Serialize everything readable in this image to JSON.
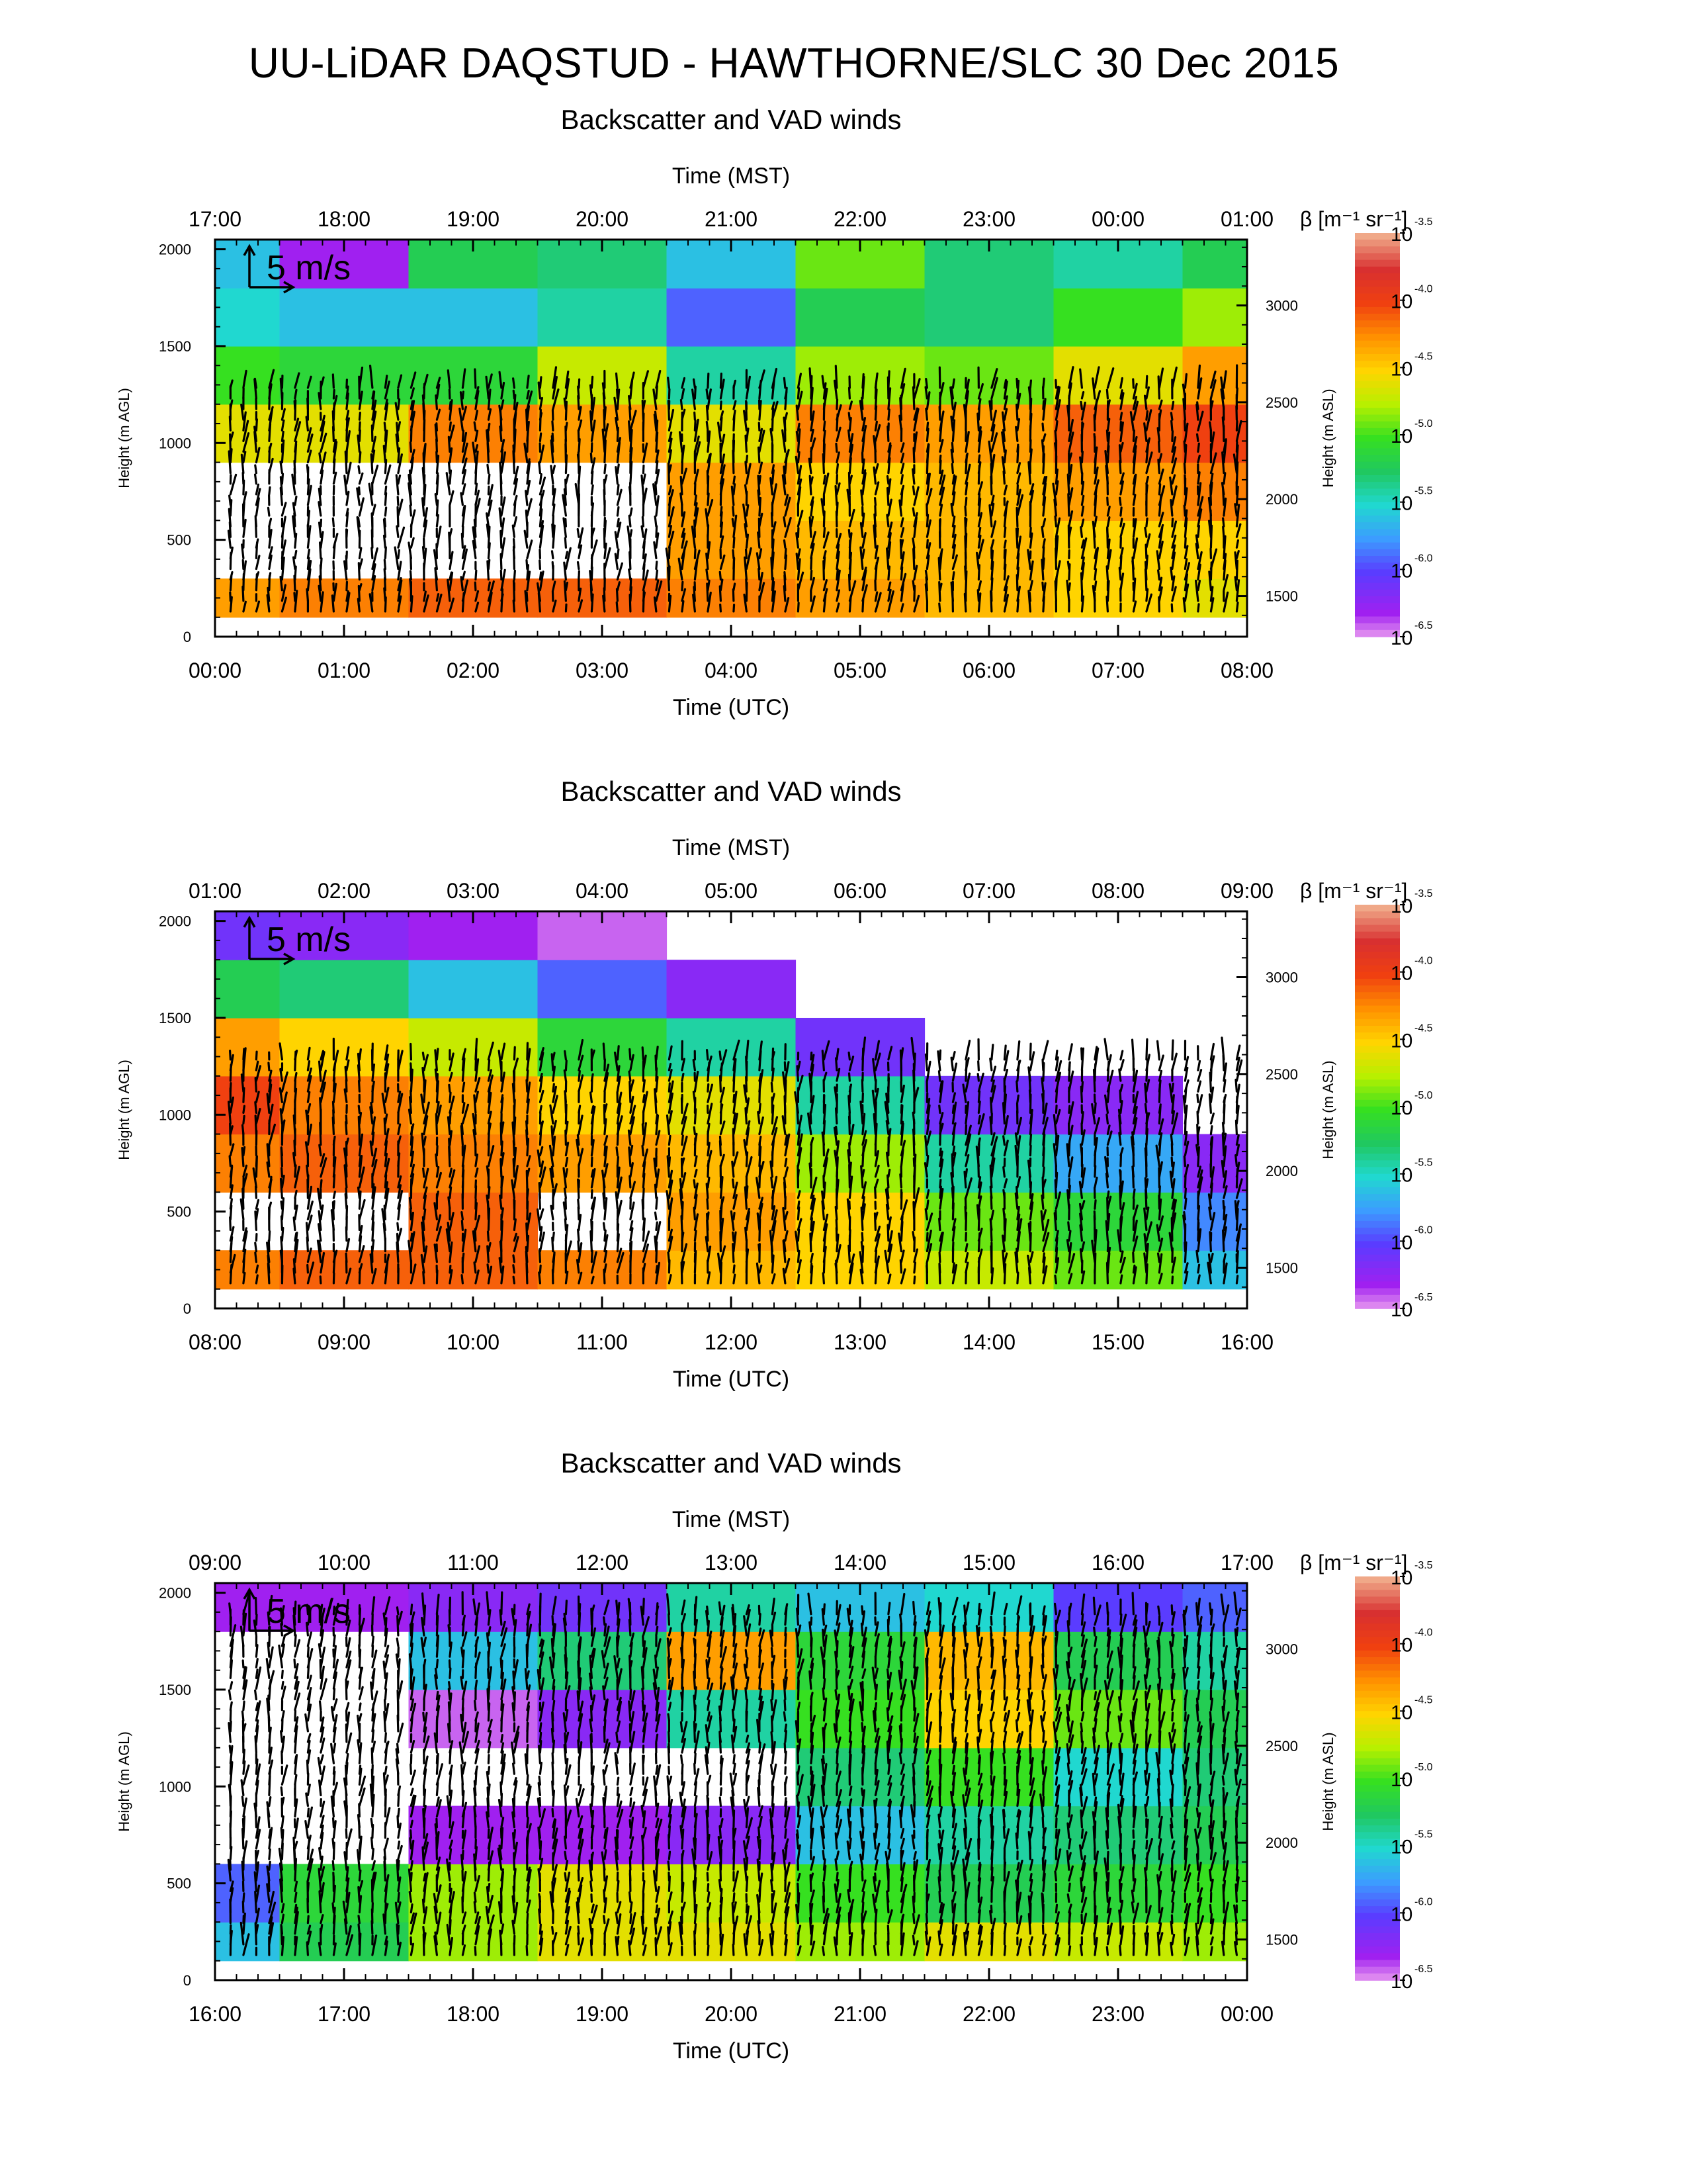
{
  "title": "UU-LiDAR DAQSTUD - HAWTHORNE/SLC 30 Dec 2015",
  "chart_data": [
    {
      "type": "heatmap",
      "title": "Backscatter and VAD winds",
      "xlabel_top": "Time (MST)",
      "xlabel_bottom": "Time (UTC)",
      "ylabel_left": "Height (m AGL)",
      "ylabel_right": "Height (m ASL)",
      "colorbar_label": "β [m⁻¹ sr⁻¹]",
      "colorbar_ticks": [
        "10^-3.5",
        "10^-4.0",
        "10^-4.5",
        "10^-5.0",
        "10^-5.5",
        "10^-6.0",
        "10^-6.5"
      ],
      "x_ticks_top": [
        "17:00",
        "18:00",
        "19:00",
        "20:00",
        "21:00",
        "22:00",
        "23:00",
        "00:00",
        "01:00"
      ],
      "x_ticks_bottom": [
        "00:00",
        "01:00",
        "02:00",
        "03:00",
        "04:00",
        "05:00",
        "06:00",
        "07:00",
        "08:00"
      ],
      "y_ticks_left": [
        "0",
        "500",
        "1000",
        "1500",
        "2000"
      ],
      "y_ticks_right": [
        "1500",
        "2000",
        "2500",
        "3000"
      ],
      "ylim": [
        0,
        2050
      ],
      "xlim_hours_utc": [
        0,
        8
      ],
      "wind_scale": "5 m/s",
      "backscatter_log10": {
        "heights_m": [
          150,
          450,
          750,
          1050,
          1350,
          1650,
          1950
        ],
        "times_utc_h": [
          0,
          1,
          2,
          3,
          4,
          5,
          6,
          7,
          8
        ],
        "values": [
          [
            -4.3,
            -4.2,
            -4.1,
            -4.1,
            -4.2,
            -4.3,
            -4.4,
            -4.5,
            -4.6
          ],
          [
            null,
            null,
            null,
            null,
            -4.3,
            -4.4,
            -4.4,
            -4.5,
            -4.5
          ],
          [
            null,
            null,
            null,
            null,
            -4.3,
            -4.5,
            -4.4,
            -4.3,
            -4.2
          ],
          [
            -4.6,
            -4.6,
            -4.2,
            -4.3,
            -4.6,
            -4.2,
            -4.3,
            -4.1,
            -4.0
          ],
          [
            -5.0,
            -5.1,
            -5.1,
            -4.7,
            -5.4,
            -4.8,
            -4.9,
            -4.6,
            -4.3
          ],
          [
            -5.5,
            -5.6,
            -5.6,
            -5.4,
            -5.9,
            -5.2,
            -5.3,
            -5.0,
            -4.8
          ],
          [
            -5.6,
            -6.3,
            -5.2,
            -5.3,
            -5.6,
            -4.9,
            -5.3,
            -5.4,
            -5.2
          ]
        ]
      },
      "wind_profile_hint": "southerly winds 3-8 m/s below 1300 m"
    },
    {
      "type": "heatmap",
      "title": "Backscatter and VAD winds",
      "xlabel_top": "Time (MST)",
      "xlabel_bottom": "Time (UTC)",
      "ylabel_left": "Height (m AGL)",
      "ylabel_right": "Height (m ASL)",
      "colorbar_label": "β [m⁻¹ sr⁻¹]",
      "colorbar_ticks": [
        "10^-3.5",
        "10^-4.0",
        "10^-4.5",
        "10^-5.0",
        "10^-5.5",
        "10^-6.0",
        "10^-6.5"
      ],
      "x_ticks_top": [
        "01:00",
        "02:00",
        "03:00",
        "04:00",
        "05:00",
        "06:00",
        "07:00",
        "08:00",
        "09:00"
      ],
      "x_ticks_bottom": [
        "08:00",
        "09:00",
        "10:00",
        "11:00",
        "12:00",
        "13:00",
        "14:00",
        "15:00",
        "16:00"
      ],
      "y_ticks_left": [
        "0",
        "500",
        "1000",
        "1500",
        "2000"
      ],
      "y_ticks_right": [
        "1500",
        "2000",
        "2500",
        "3000"
      ],
      "ylim": [
        0,
        2050
      ],
      "xlim_hours_utc": [
        8,
        16
      ],
      "wind_scale": "5 m/s",
      "backscatter_log10": {
        "heights_m": [
          150,
          450,
          750,
          1050,
          1350,
          1650,
          1950
        ],
        "times_utc_h": [
          8,
          9,
          10,
          11,
          12,
          13,
          14,
          15,
          16
        ],
        "values": [
          [
            -4.2,
            -4.1,
            -4.1,
            -4.2,
            -4.4,
            -4.5,
            -4.7,
            -4.9,
            -5.6
          ],
          [
            null,
            null,
            -4.1,
            null,
            -4.3,
            -4.5,
            -4.9,
            -5.1,
            -5.8
          ],
          [
            -4.2,
            -4.1,
            -4.2,
            -4.3,
            -4.4,
            -4.8,
            -5.4,
            -5.7,
            -6.2
          ],
          [
            -4.0,
            -4.2,
            -4.3,
            -4.5,
            -4.6,
            -5.4,
            -6.1,
            -6.2,
            null
          ],
          [
            -4.3,
            -4.5,
            -4.7,
            -5.1,
            -5.4,
            -6.1,
            null,
            null,
            null
          ],
          [
            -5.2,
            -5.3,
            -5.6,
            -5.9,
            -6.2,
            null,
            null,
            null,
            null
          ],
          [
            -6.1,
            -6.2,
            -6.3,
            -6.4,
            null,
            null,
            null,
            null,
            null
          ]
        ]
      },
      "wind_profile_hint": "southerly winds 4-10 m/s below 1300 m"
    },
    {
      "type": "heatmap",
      "title": "Backscatter and VAD winds",
      "xlabel_top": "Time (MST)",
      "xlabel_bottom": "Time (UTC)",
      "ylabel_left": "Height (m AGL)",
      "ylabel_right": "Height (m ASL)",
      "colorbar_label": "β [m⁻¹ sr⁻¹]",
      "colorbar_ticks": [
        "10^-3.5",
        "10^-4.0",
        "10^-4.5",
        "10^-5.0",
        "10^-5.5",
        "10^-6.0",
        "10^-6.5"
      ],
      "x_ticks_top": [
        "09:00",
        "10:00",
        "11:00",
        "12:00",
        "13:00",
        "14:00",
        "15:00",
        "16:00",
        "17:00"
      ],
      "x_ticks_bottom": [
        "16:00",
        "17:00",
        "18:00",
        "19:00",
        "20:00",
        "21:00",
        "22:00",
        "23:00",
        "00:00"
      ],
      "y_ticks_left": [
        "0",
        "500",
        "1000",
        "1500",
        "2000"
      ],
      "y_ticks_right": [
        "1500",
        "2000",
        "2500",
        "3000"
      ],
      "ylim": [
        0,
        2050
      ],
      "xlim_hours_utc": [
        16,
        24
      ],
      "wind_scale": "5 m/s",
      "backscatter_log10": {
        "heights_m": [
          150,
          450,
          750,
          1050,
          1350,
          1650,
          1950
        ],
        "times_utc_h": [
          16,
          17,
          18,
          19,
          20,
          21,
          22,
          23,
          24
        ],
        "values": [
          [
            -5.6,
            -5.2,
            -4.8,
            -4.6,
            -4.6,
            -4.8,
            -4.6,
            -4.7,
            -4.8
          ],
          [
            -5.9,
            -5.1,
            -4.8,
            -4.6,
            -4.7,
            -5.0,
            -5.2,
            -5.1,
            -5.0
          ],
          [
            null,
            null,
            -6.3,
            -6.3,
            -6.2,
            -5.6,
            -5.4,
            -5.3,
            -5.2
          ],
          [
            null,
            null,
            null,
            null,
            null,
            -5.3,
            -5.0,
            -5.5,
            -5.3
          ],
          [
            null,
            null,
            -6.4,
            -6.2,
            -5.4,
            -5.0,
            -4.5,
            -4.9,
            -5.2
          ],
          [
            null,
            null,
            -5.6,
            -5.3,
            -4.3,
            -5.1,
            -4.4,
            -5.2,
            -5.4
          ],
          [
            -6.3,
            -6.3,
            -6.2,
            -6.1,
            -5.4,
            -5.6,
            -5.5,
            -6.0,
            -5.9
          ]
        ]
      },
      "wind_profile_hint": "southerly winds 3-10 m/s below 2000 m"
    }
  ]
}
